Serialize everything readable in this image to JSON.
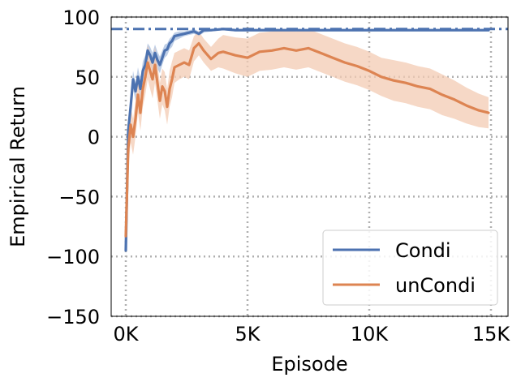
{
  "chart_data": {
    "type": "line",
    "title": "",
    "xlabel": "Episode",
    "ylabel": "Empirical Return",
    "xlim": [
      -600,
      15700
    ],
    "ylim": [
      -150,
      100
    ],
    "x_ticks": [
      {
        "value": 0,
        "label": "0K"
      },
      {
        "value": 5000,
        "label": "5K"
      },
      {
        "value": 10000,
        "label": "10K"
      },
      {
        "value": 15000,
        "label": "15K"
      }
    ],
    "y_ticks": [
      {
        "value": 100,
        "label": "100"
      },
      {
        "value": 50,
        "label": "50"
      },
      {
        "value": 0,
        "label": "0"
      },
      {
        "value": -50,
        "label": "−50"
      },
      {
        "value": -100,
        "label": "−100"
      },
      {
        "value": -150,
        "label": "−150"
      }
    ],
    "grid": true,
    "grid_style": "dotted",
    "legend_position": "lower-right",
    "reference_line": {
      "y": 90,
      "style": "dash-dot",
      "color": "#4c72b0"
    },
    "series": [
      {
        "name": "Condi",
        "color": "#4c72b0",
        "band_color": "#a9bfdf",
        "x": [
          0,
          100,
          200,
          300,
          400,
          500,
          600,
          700,
          800,
          900,
          1000,
          1100,
          1200,
          1300,
          1400,
          1500,
          1600,
          1700,
          1800,
          1900,
          2000,
          2200,
          2400,
          2600,
          2800,
          3000,
          3200,
          3500,
          4000,
          4500,
          5000,
          6000,
          7000,
          8000,
          9000,
          10000,
          11000,
          12000,
          13000,
          14000,
          14900
        ],
        "y": [
          -95,
          5,
          25,
          48,
          38,
          50,
          40,
          55,
          60,
          72,
          68,
          62,
          70,
          64,
          60,
          66,
          72,
          73,
          78,
          80,
          84,
          85,
          86,
          87,
          88,
          86,
          89,
          89,
          90,
          89,
          89,
          89,
          89,
          89,
          89,
          89,
          89,
          89,
          89,
          89,
          89
        ],
        "lower": [
          -100,
          0,
          18,
          40,
          30,
          42,
          32,
          46,
          52,
          65,
          60,
          55,
          62,
          57,
          53,
          60,
          66,
          68,
          73,
          75,
          80,
          82,
          84,
          85,
          86,
          84,
          87,
          88,
          89,
          88,
          88,
          88,
          88,
          88,
          88,
          88,
          88,
          88,
          88,
          88,
          88
        ],
        "upper": [
          -90,
          10,
          32,
          55,
          45,
          58,
          48,
          63,
          68,
          78,
          75,
          70,
          77,
          71,
          67,
          72,
          77,
          78,
          82,
          84,
          87,
          88,
          88,
          89,
          90,
          88,
          90,
          90,
          91,
          90,
          90,
          90,
          90,
          90,
          90,
          90,
          90,
          90,
          90,
          90,
          90
        ]
      },
      {
        "name": "unCondi",
        "color": "#dd8452",
        "band_color": "#f3cbb3",
        "x": [
          0,
          100,
          200,
          300,
          400,
          500,
          600,
          700,
          800,
          900,
          1000,
          1100,
          1200,
          1300,
          1400,
          1500,
          1600,
          1700,
          1800,
          1900,
          2000,
          2200,
          2400,
          2600,
          2800,
          3000,
          3200,
          3500,
          3800,
          4000,
          4500,
          5000,
          5500,
          6000,
          6500,
          7000,
          7500,
          8000,
          8500,
          9000,
          9500,
          10000,
          10500,
          11000,
          11500,
          12000,
          12500,
          13000,
          13500,
          14000,
          14500,
          14900
        ],
        "y": [
          -83,
          -10,
          10,
          0,
          15,
          35,
          20,
          40,
          50,
          62,
          55,
          48,
          60,
          45,
          30,
          42,
          38,
          25,
          40,
          48,
          58,
          60,
          62,
          60,
          74,
          78,
          72,
          65,
          70,
          71,
          68,
          66,
          71,
          72,
          74,
          72,
          74,
          70,
          66,
          62,
          59,
          55,
          50,
          47,
          45,
          42,
          40,
          35,
          31,
          26,
          22,
          20
        ],
        "lower": [
          -95,
          -25,
          -5,
          -15,
          0,
          20,
          5,
          25,
          35,
          48,
          40,
          32,
          45,
          30,
          15,
          27,
          22,
          10,
          25,
          33,
          45,
          48,
          50,
          48,
          63,
          68,
          62,
          55,
          58,
          57,
          53,
          50,
          55,
          56,
          58,
          56,
          58,
          54,
          50,
          46,
          43,
          39,
          34,
          30,
          28,
          25,
          23,
          18,
          15,
          11,
          8,
          7
        ],
        "upper": [
          -70,
          5,
          25,
          15,
          30,
          50,
          35,
          55,
          65,
          76,
          70,
          64,
          75,
          60,
          45,
          57,
          54,
          40,
          55,
          63,
          70,
          72,
          74,
          72,
          84,
          88,
          82,
          75,
          82,
          85,
          83,
          82,
          87,
          88,
          90,
          88,
          90,
          86,
          82,
          78,
          75,
          71,
          66,
          64,
          62,
          59,
          57,
          52,
          47,
          41,
          36,
          33
        ]
      }
    ]
  }
}
